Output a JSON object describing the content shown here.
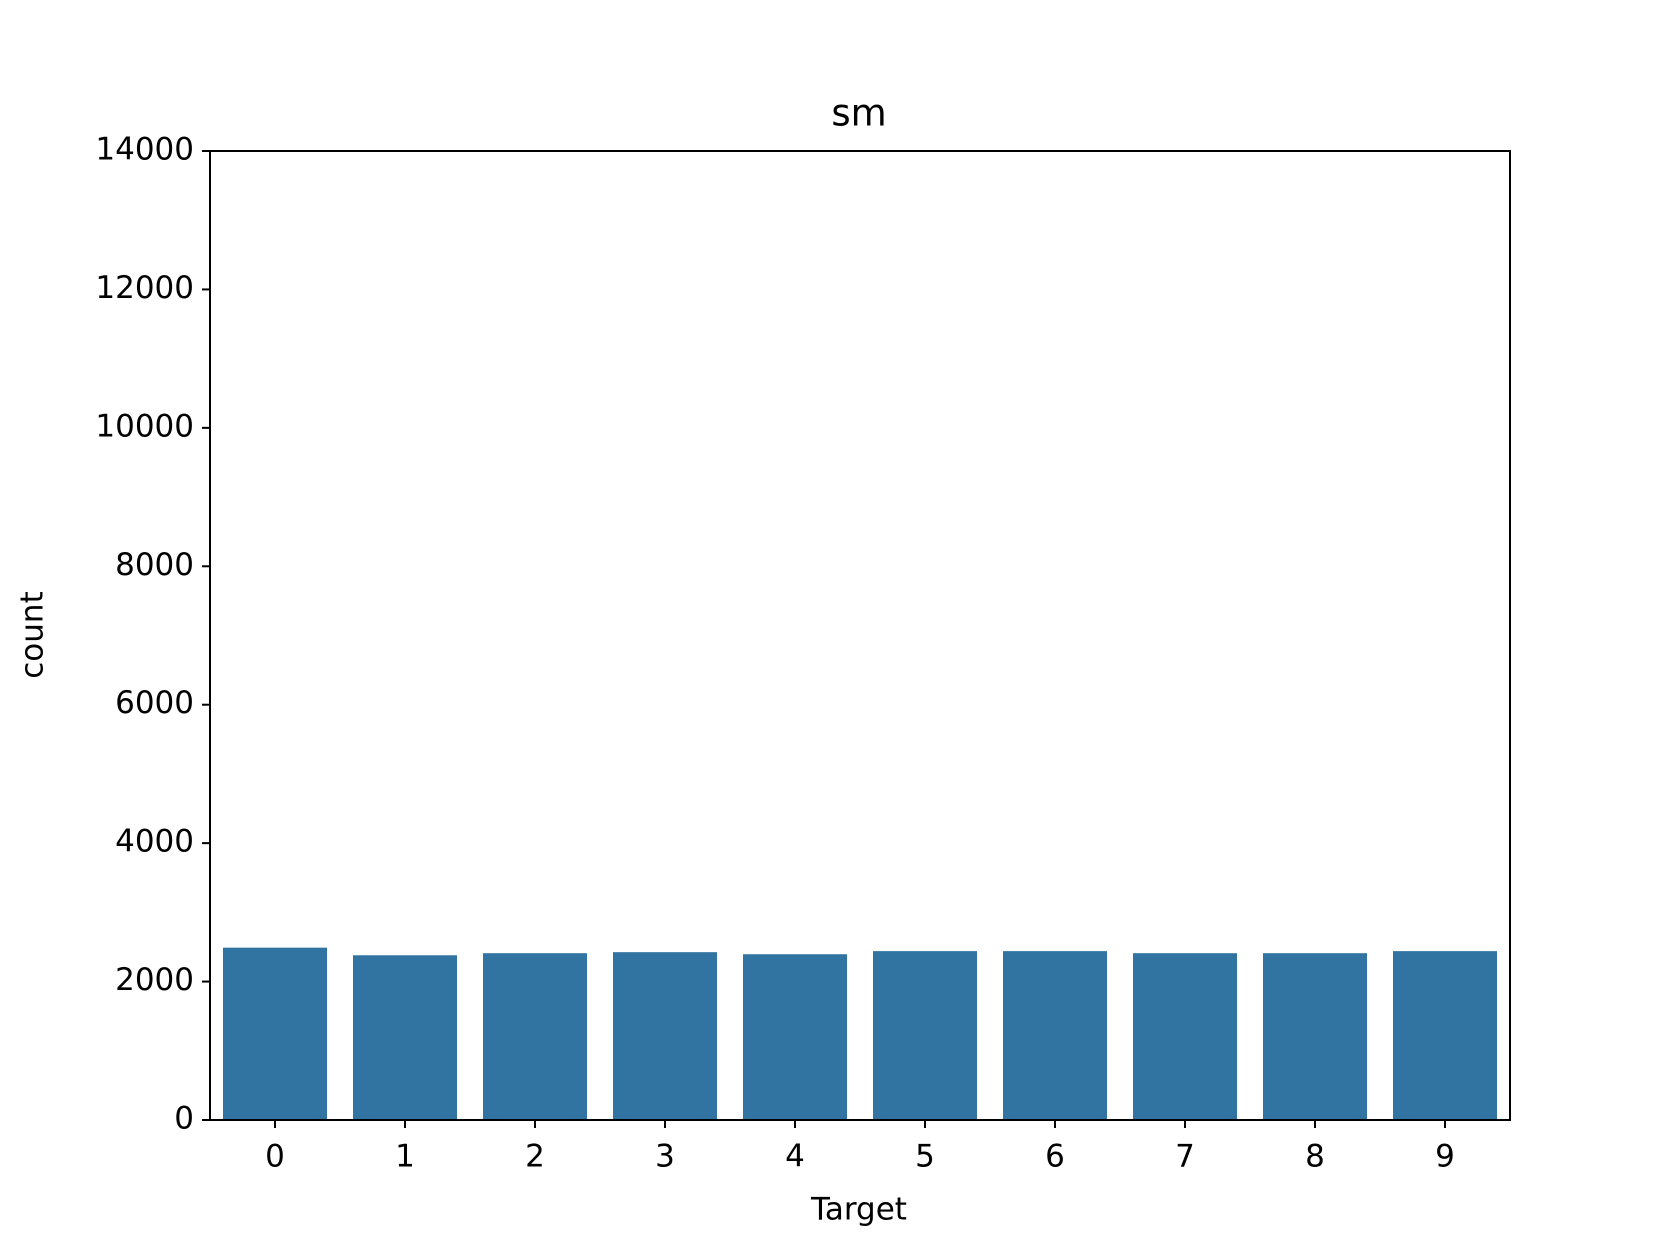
{
  "chart_data": {
    "type": "bar",
    "title": "sm",
    "x_label": "Target",
    "y_label": "count",
    "categories": [
      "0",
      "1",
      "2",
      "3",
      "4",
      "5",
      "6",
      "7",
      "8",
      "9"
    ],
    "values": [
      2490,
      2380,
      2410,
      2425,
      2395,
      2440,
      2440,
      2410,
      2410,
      2440
    ],
    "color": "#3274a1",
    "ylim": [
      0,
      14000
    ],
    "yticks": [
      0,
      2000,
      4000,
      6000,
      8000,
      10000,
      12000,
      14000
    ],
    "grid": false
  }
}
